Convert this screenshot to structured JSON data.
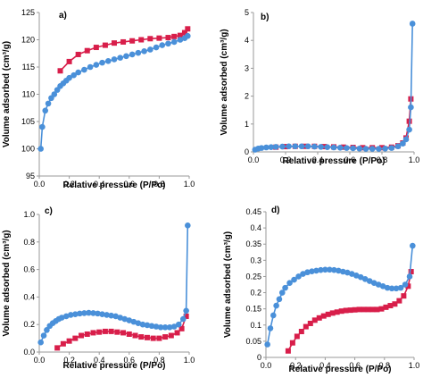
{
  "colors": {
    "adsorption": "#4a90d9",
    "desorption": "#d81e4a",
    "axis": "#9a9a9a",
    "text": "#000000"
  },
  "chart_data": [
    {
      "id": "a",
      "type": "line",
      "panel_label": "a)",
      "xlabel": "Relative pressure (P/Po)",
      "ylabel": "Volume adsorbed (cm³/g)",
      "xlim": [
        0,
        1
      ],
      "ylim": [
        95,
        125
      ],
      "xticks": [
        0,
        0.2,
        0.4,
        0.6,
        0.8,
        1
      ],
      "yticks": [
        95,
        100,
        105,
        110,
        115,
        120,
        125
      ],
      "xtick_labels": [
        "0.0",
        "0.2",
        "0.4",
        "0.6",
        "0.8",
        "1.0"
      ],
      "ytick_labels": [
        "95",
        "100",
        "105",
        "110",
        "115",
        "120",
        "125"
      ],
      "grid": false,
      "series": [
        {
          "role": "adsorption",
          "marker": "circle",
          "x": [
            0.01,
            0.02,
            0.04,
            0.06,
            0.08,
            0.1,
            0.12,
            0.14,
            0.16,
            0.18,
            0.2,
            0.23,
            0.26,
            0.3,
            0.34,
            0.38,
            0.42,
            0.46,
            0.5,
            0.54,
            0.58,
            0.62,
            0.66,
            0.7,
            0.74,
            0.78,
            0.82,
            0.86,
            0.9,
            0.94,
            0.97,
            0.99
          ],
          "y": [
            100,
            104,
            107,
            108.3,
            109.3,
            110,
            110.8,
            111.5,
            112,
            112.5,
            113,
            113.5,
            114,
            114.5,
            115,
            115.4,
            115.8,
            116.1,
            116.4,
            116.7,
            117,
            117.3,
            117.6,
            117.9,
            118.2,
            118.6,
            119,
            119.3,
            119.6,
            120,
            120.3,
            120.7
          ]
        },
        {
          "role": "desorption",
          "marker": "square",
          "x": [
            0.14,
            0.2,
            0.26,
            0.32,
            0.38,
            0.44,
            0.5,
            0.56,
            0.62,
            0.68,
            0.74,
            0.8,
            0.86,
            0.9,
            0.94,
            0.97,
            0.99
          ],
          "y": [
            114.3,
            116,
            117.3,
            118,
            118.6,
            119,
            119.4,
            119.6,
            119.8,
            120,
            120.2,
            120.3,
            120.4,
            120.6,
            120.8,
            121.3,
            122
          ]
        }
      ]
    },
    {
      "id": "b",
      "type": "line",
      "panel_label": "b)",
      "xlabel": "Relative pressure (P/Po)",
      "ylabel": "Volume adsorbed (cm³/g)",
      "xlim": [
        0,
        1
      ],
      "ylim": [
        0,
        5
      ],
      "xticks": [
        0,
        0.2,
        0.4,
        0.6,
        0.8,
        1
      ],
      "yticks": [
        0,
        1,
        2,
        3,
        4,
        5
      ],
      "xtick_labels": [
        "0.0",
        "0.2",
        "0.4",
        "0.6",
        "0.8",
        "1.0"
      ],
      "ytick_labels": [
        "0",
        "1",
        "2",
        "3",
        "4",
        "5"
      ],
      "grid": false,
      "series": [
        {
          "role": "adsorption",
          "marker": "circle",
          "x": [
            0.01,
            0.03,
            0.05,
            0.08,
            0.11,
            0.14,
            0.18,
            0.22,
            0.26,
            0.3,
            0.34,
            0.38,
            0.42,
            0.46,
            0.5,
            0.54,
            0.58,
            0.62,
            0.66,
            0.7,
            0.74,
            0.78,
            0.82,
            0.86,
            0.9,
            0.93,
            0.95,
            0.97,
            0.98,
            0.99
          ],
          "y": [
            0.08,
            0.12,
            0.14,
            0.16,
            0.17,
            0.18,
            0.19,
            0.2,
            0.2,
            0.2,
            0.2,
            0.19,
            0.18,
            0.17,
            0.16,
            0.15,
            0.14,
            0.13,
            0.12,
            0.11,
            0.11,
            0.11,
            0.12,
            0.14,
            0.2,
            0.3,
            0.45,
            0.8,
            1.6,
            4.6
          ]
        },
        {
          "role": "desorption",
          "marker": "square",
          "x": [
            0.14,
            0.2,
            0.26,
            0.32,
            0.38,
            0.44,
            0.5,
            0.56,
            0.62,
            0.68,
            0.74,
            0.8,
            0.86,
            0.9,
            0.93,
            0.95,
            0.97,
            0.98
          ],
          "y": [
            0.17,
            0.19,
            0.2,
            0.2,
            0.2,
            0.19,
            0.18,
            0.17,
            0.16,
            0.15,
            0.15,
            0.15,
            0.17,
            0.22,
            0.32,
            0.5,
            1.1,
            1.9
          ]
        }
      ]
    },
    {
      "id": "c",
      "type": "line",
      "panel_label": "c)",
      "xlabel": "Relative pressure (P/Po)",
      "ylabel": "Volume adsorbed (cm³/g)",
      "xlim": [
        0,
        1
      ],
      "ylim": [
        0,
        1
      ],
      "xticks": [
        0,
        0.2,
        0.4,
        0.6,
        0.8,
        1
      ],
      "yticks": [
        0,
        0.2,
        0.4,
        0.6,
        0.8,
        1
      ],
      "xtick_labels": [
        "0.0",
        "0.2",
        "0.4",
        "0.6",
        "0.8",
        "1.0"
      ],
      "ytick_labels": [
        "0.0",
        "0.2",
        "0.4",
        "0.6",
        "0.8",
        "1.0"
      ],
      "grid": false,
      "series": [
        {
          "role": "adsorption",
          "marker": "circle",
          "x": [
            0.01,
            0.03,
            0.05,
            0.07,
            0.09,
            0.11,
            0.13,
            0.15,
            0.18,
            0.21,
            0.24,
            0.27,
            0.3,
            0.33,
            0.36,
            0.39,
            0.42,
            0.45,
            0.48,
            0.51,
            0.54,
            0.57,
            0.6,
            0.63,
            0.66,
            0.69,
            0.72,
            0.75,
            0.78,
            0.81,
            0.84,
            0.87,
            0.9,
            0.93,
            0.96,
            0.98,
            0.99
          ],
          "y": [
            0.07,
            0.12,
            0.16,
            0.19,
            0.21,
            0.225,
            0.24,
            0.25,
            0.26,
            0.27,
            0.275,
            0.28,
            0.283,
            0.285,
            0.283,
            0.28,
            0.275,
            0.27,
            0.265,
            0.26,
            0.25,
            0.24,
            0.23,
            0.22,
            0.21,
            0.2,
            0.195,
            0.19,
            0.185,
            0.18,
            0.18,
            0.18,
            0.185,
            0.2,
            0.24,
            0.3,
            0.92
          ]
        },
        {
          "role": "desorption",
          "marker": "square",
          "x": [
            0.12,
            0.16,
            0.2,
            0.24,
            0.28,
            0.32,
            0.36,
            0.4,
            0.44,
            0.48,
            0.52,
            0.56,
            0.6,
            0.64,
            0.68,
            0.72,
            0.76,
            0.8,
            0.84,
            0.88,
            0.92,
            0.95,
            0.98
          ],
          "y": [
            0.03,
            0.06,
            0.08,
            0.1,
            0.12,
            0.13,
            0.14,
            0.145,
            0.15,
            0.15,
            0.145,
            0.14,
            0.13,
            0.12,
            0.11,
            0.105,
            0.1,
            0.1,
            0.11,
            0.12,
            0.14,
            0.17,
            0.26
          ]
        }
      ]
    },
    {
      "id": "d",
      "type": "line",
      "panel_label": "d)",
      "xlabel": "Relative pressure (P/Po)",
      "ylabel": "Volume adsorbed (cm³/g)",
      "xlim": [
        0,
        1
      ],
      "ylim": [
        0,
        0.45
      ],
      "xticks": [
        0,
        0.2,
        0.4,
        0.6,
        0.8,
        1
      ],
      "yticks": [
        0,
        0.05,
        0.1,
        0.15,
        0.2,
        0.25,
        0.3,
        0.35,
        0.4,
        0.45
      ],
      "xtick_labels": [
        "0.0",
        "0.2",
        "0.4",
        "0.6",
        "0.8",
        "1.0"
      ],
      "ytick_labels": [
        "0",
        "0.05",
        "0.1",
        "0.15",
        "0.2",
        "0.25",
        "0.3",
        "0.35",
        "0.4",
        "0.45"
      ],
      "grid": false,
      "series": [
        {
          "role": "adsorption",
          "marker": "circle",
          "x": [
            0.01,
            0.03,
            0.05,
            0.07,
            0.09,
            0.11,
            0.13,
            0.16,
            0.19,
            0.22,
            0.25,
            0.28,
            0.31,
            0.34,
            0.37,
            0.4,
            0.43,
            0.46,
            0.49,
            0.52,
            0.55,
            0.58,
            0.61,
            0.64,
            0.67,
            0.7,
            0.73,
            0.76,
            0.79,
            0.82,
            0.85,
            0.88,
            0.91,
            0.94,
            0.97,
            0.99
          ],
          "y": [
            0.04,
            0.09,
            0.13,
            0.16,
            0.18,
            0.2,
            0.215,
            0.23,
            0.24,
            0.25,
            0.258,
            0.263,
            0.266,
            0.268,
            0.27,
            0.271,
            0.271,
            0.27,
            0.268,
            0.265,
            0.262,
            0.258,
            0.253,
            0.248,
            0.242,
            0.236,
            0.23,
            0.225,
            0.22,
            0.215,
            0.213,
            0.213,
            0.215,
            0.225,
            0.25,
            0.345
          ]
        },
        {
          "role": "desorption",
          "marker": "square",
          "x": [
            0.15,
            0.18,
            0.21,
            0.24,
            0.27,
            0.3,
            0.33,
            0.36,
            0.39,
            0.42,
            0.45,
            0.48,
            0.51,
            0.54,
            0.57,
            0.6,
            0.63,
            0.66,
            0.69,
            0.72,
            0.75,
            0.78,
            0.81,
            0.84,
            0.87,
            0.9,
            0.93,
            0.96,
            0.98
          ],
          "y": [
            0.02,
            0.045,
            0.065,
            0.08,
            0.095,
            0.105,
            0.115,
            0.122,
            0.128,
            0.133,
            0.137,
            0.14,
            0.143,
            0.145,
            0.146,
            0.147,
            0.148,
            0.148,
            0.148,
            0.148,
            0.148,
            0.15,
            0.155,
            0.16,
            0.165,
            0.175,
            0.19,
            0.22,
            0.265
          ]
        }
      ]
    }
  ]
}
